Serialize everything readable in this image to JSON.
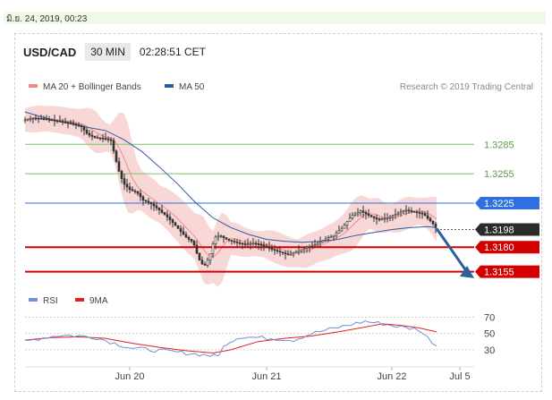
{
  "datebar": {
    "text": "มิ.ย. 24, 2019, 00:23"
  },
  "header": {
    "pair": "USD/CAD",
    "timeframe": "30 MIN",
    "time": "02:28:51 CET"
  },
  "legend": {
    "ma20": {
      "label": "MA 20 + Bollinger Bands",
      "color": "#f08a8a"
    },
    "ma50": {
      "label": "MA 50",
      "color": "#2f5aa3"
    },
    "credit": "Research © 2019 Trading Central"
  },
  "colors": {
    "candle": "#333333",
    "band": "#f6c9c9",
    "rsi": "#6f8fd6",
    "rsi_ma": "#e02020",
    "support": "#d40000",
    "resistance_green": "#7cc46a",
    "pivot_blue": "#2f6fe0",
    "current": "#2b2b2b",
    "arrow": "#2d5e9e"
  },
  "chart_data": [
    {
      "type": "line",
      "title": "USD/CAD 30 MIN",
      "x_tick_labels": [
        "Jun 20",
        "Jun 21",
        "Jun 22",
        "Jul 5"
      ],
      "ylim": [
        1.314,
        1.333
      ],
      "price_path": [
        [
          0,
          1.331
        ],
        [
          8,
          1.3312
        ],
        [
          20,
          1.3311
        ],
        [
          35,
          1.3309
        ],
        [
          50,
          1.3307
        ],
        [
          62,
          1.3304
        ],
        [
          70,
          1.3295
        ],
        [
          78,
          1.3292
        ],
        [
          88,
          1.3291
        ],
        [
          96,
          1.3289
        ],
        [
          104,
          1.326
        ],
        [
          110,
          1.3245
        ],
        [
          118,
          1.3238
        ],
        [
          125,
          1.3236
        ],
        [
          132,
          1.3228
        ],
        [
          140,
          1.3225
        ],
        [
          150,
          1.3218
        ],
        [
          160,
          1.321
        ],
        [
          170,
          1.32
        ],
        [
          180,
          1.319
        ],
        [
          188,
          1.3185
        ],
        [
          194,
          1.3168
        ],
        [
          200,
          1.316
        ],
        [
          206,
          1.317
        ],
        [
          212,
          1.319
        ],
        [
          218,
          1.3192
        ],
        [
          225,
          1.3188
        ],
        [
          235,
          1.3185
        ],
        [
          245,
          1.3183
        ],
        [
          255,
          1.3184
        ],
        [
          265,
          1.3182
        ],
        [
          275,
          1.3178
        ],
        [
          285,
          1.3175
        ],
        [
          295,
          1.3172
        ],
        [
          305,
          1.3176
        ],
        [
          315,
          1.318
        ],
        [
          325,
          1.3183
        ],
        [
          335,
          1.3188
        ],
        [
          345,
          1.3192
        ],
        [
          355,
          1.32
        ],
        [
          365,
          1.3212
        ],
        [
          375,
          1.3217
        ],
        [
          385,
          1.3212
        ],
        [
          395,
          1.3208
        ],
        [
          405,
          1.321
        ],
        [
          415,
          1.3214
        ],
        [
          425,
          1.3218
        ],
        [
          435,
          1.3216
        ],
        [
          445,
          1.3214
        ],
        [
          455,
          1.3205
        ],
        [
          460,
          1.3199
        ]
      ],
      "ma50_path": [
        [
          0,
          1.3318
        ],
        [
          30,
          1.331
        ],
        [
          60,
          1.3304
        ],
        [
          90,
          1.3299
        ],
        [
          110,
          1.329
        ],
        [
          130,
          1.3278
        ],
        [
          150,
          1.3262
        ],
        [
          170,
          1.3245
        ],
        [
          190,
          1.3226
        ],
        [
          210,
          1.321
        ],
        [
          230,
          1.32
        ],
        [
          250,
          1.3193
        ],
        [
          270,
          1.3188
        ],
        [
          290,
          1.3186
        ],
        [
          310,
          1.3185
        ],
        [
          330,
          1.3186
        ],
        [
          350,
          1.3188
        ],
        [
          370,
          1.3192
        ],
        [
          390,
          1.3195
        ],
        [
          410,
          1.3198
        ],
        [
          430,
          1.32
        ],
        [
          450,
          1.3201
        ],
        [
          460,
          1.32
        ]
      ],
      "levels": [
        {
          "label": "1.3285",
          "value": 1.3285,
          "style": "green"
        },
        {
          "label": "1.3255",
          "value": 1.3255,
          "style": "green"
        },
        {
          "label": "1.3225",
          "value": 1.3225,
          "style": "blue"
        },
        {
          "label": "1.3198",
          "value": 1.3198,
          "style": "current"
        },
        {
          "label": "1.3180",
          "value": 1.318,
          "style": "red"
        },
        {
          "label": "1.3155",
          "value": 1.3155,
          "style": "red"
        }
      ]
    },
    {
      "type": "line",
      "title": "RSI",
      "series": [
        {
          "name": "RSI"
        },
        {
          "name": "9MA"
        }
      ],
      "ylim": [
        20,
        75
      ],
      "y_ticks": [
        {
          "label": "70",
          "value": 70
        },
        {
          "label": "50",
          "value": 50
        },
        {
          "label": "30",
          "value": 30
        }
      ],
      "rsi_path": [
        [
          0,
          40
        ],
        [
          20,
          45
        ],
        [
          40,
          48
        ],
        [
          60,
          47
        ],
        [
          80,
          45
        ],
        [
          100,
          38
        ],
        [
          120,
          32
        ],
        [
          140,
          30
        ],
        [
          160,
          28
        ],
        [
          180,
          26
        ],
        [
          200,
          24
        ],
        [
          215,
          22
        ],
        [
          225,
          38
        ],
        [
          240,
          46
        ],
        [
          260,
          45
        ],
        [
          280,
          44
        ],
        [
          300,
          42
        ],
        [
          320,
          50
        ],
        [
          340,
          55
        ],
        [
          360,
          60
        ],
        [
          380,
          65
        ],
        [
          400,
          62
        ],
        [
          420,
          58
        ],
        [
          440,
          55
        ],
        [
          460,
          35
        ]
      ],
      "rsi_ma_path": [
        [
          0,
          42
        ],
        [
          30,
          45
        ],
        [
          60,
          46
        ],
        [
          90,
          44
        ],
        [
          120,
          38
        ],
        [
          150,
          33
        ],
        [
          180,
          29
        ],
        [
          210,
          26
        ],
        [
          230,
          30
        ],
        [
          260,
          40
        ],
        [
          290,
          44
        ],
        [
          320,
          47
        ],
        [
          350,
          52
        ],
        [
          380,
          58
        ],
        [
          400,
          62
        ],
        [
          420,
          60
        ],
        [
          440,
          57
        ],
        [
          460,
          52
        ]
      ]
    }
  ]
}
